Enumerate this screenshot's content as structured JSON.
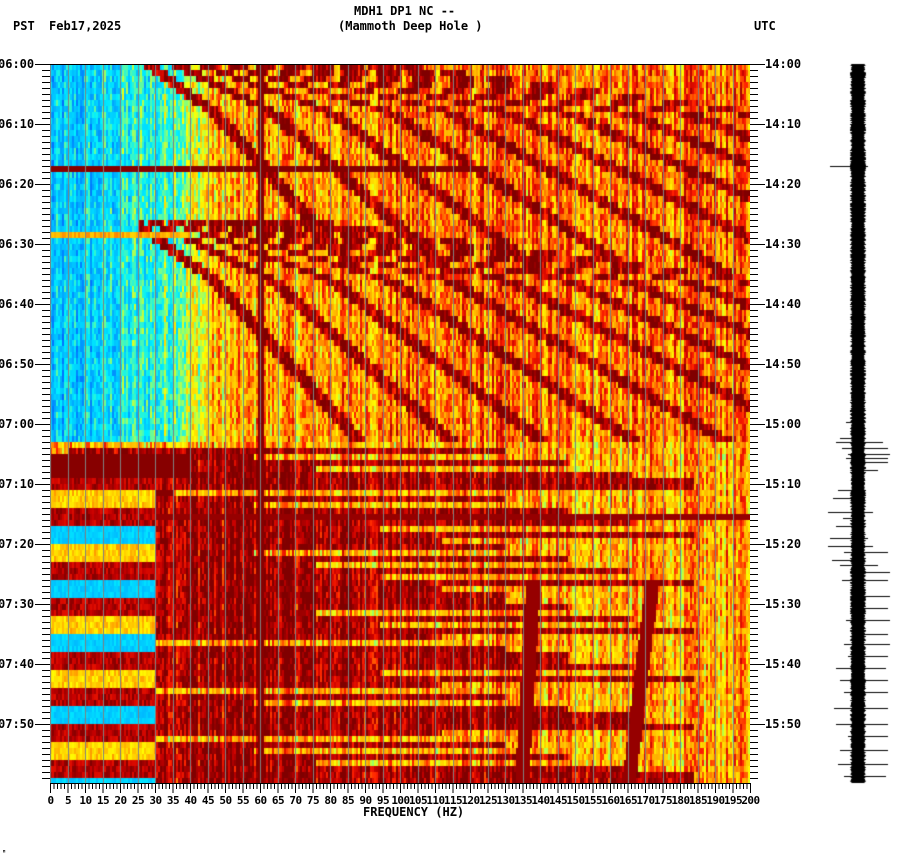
{
  "header": {
    "title_line1": "MDH1 DP1 NC --",
    "title_line2": "(Mammoth Deep Hole )",
    "left_timezone": "PST",
    "date": "Feb17,2025",
    "right_timezone": "UTC"
  },
  "footer_mark": "ᴴ",
  "colors": {
    "background": "#ffffff",
    "gridline": "#808080",
    "colormap_low": "#0080ff",
    "colormap_mid": "#ffff00",
    "colormap_high": "#800000",
    "seismogram": "#000000"
  },
  "chart_data": {
    "type": "heatmap",
    "title": "MDH1 DP1 NC -- (Mammoth Deep Hole )",
    "subtitle": "PST Feb17,2025",
    "xlabel": "FREQUENCY (HZ)",
    "ylabel_left": "PST",
    "ylabel_right": "UTC",
    "xlim": [
      0,
      200
    ],
    "x_ticks": [
      "0",
      "5",
      "10",
      "15",
      "20",
      "25",
      "30",
      "35",
      "40",
      "45",
      "50",
      "55",
      "60",
      "65",
      "70",
      "75",
      "80",
      "85",
      "90",
      "95",
      "100",
      "105",
      "110",
      "115",
      "120",
      "125",
      "130",
      "135",
      "140",
      "145",
      "150",
      "155",
      "160",
      "165",
      "170",
      "175",
      "180",
      "185",
      "190",
      "195",
      "200"
    ],
    "y_ticks_left": [
      "06:00",
      "06:10",
      "06:20",
      "06:30",
      "06:40",
      "06:50",
      "07:00",
      "07:10",
      "07:20",
      "07:30",
      "07:40",
      "07:50"
    ],
    "y_ticks_right": [
      "14:00",
      "14:10",
      "14:20",
      "14:30",
      "14:40",
      "14:50",
      "15:00",
      "15:10",
      "15:20",
      "15:30",
      "15:40",
      "15:50"
    ],
    "time_range_minutes": 120,
    "grid": "vertical gray lines every 5 Hz",
    "features": {
      "persistent_line_hz": 60,
      "quiet_low_freq_band_hz": [
        0,
        30
      ],
      "quiet_until_min": 63,
      "broadband_lines_min": [
        17,
        28,
        65,
        66,
        67,
        68,
        75
      ],
      "gliding_harmonics_repeat_min": [
        0,
        28
      ],
      "intermittent_noise_start_min": 63
    },
    "colormap": "jet-like: blue (low) -> cyan -> yellow -> red -> dark red (high)",
    "side_trace": "seismogram, quiet until ~14:59 UTC, bursts 15:03-15:22 UTC, spikes thereafter"
  }
}
